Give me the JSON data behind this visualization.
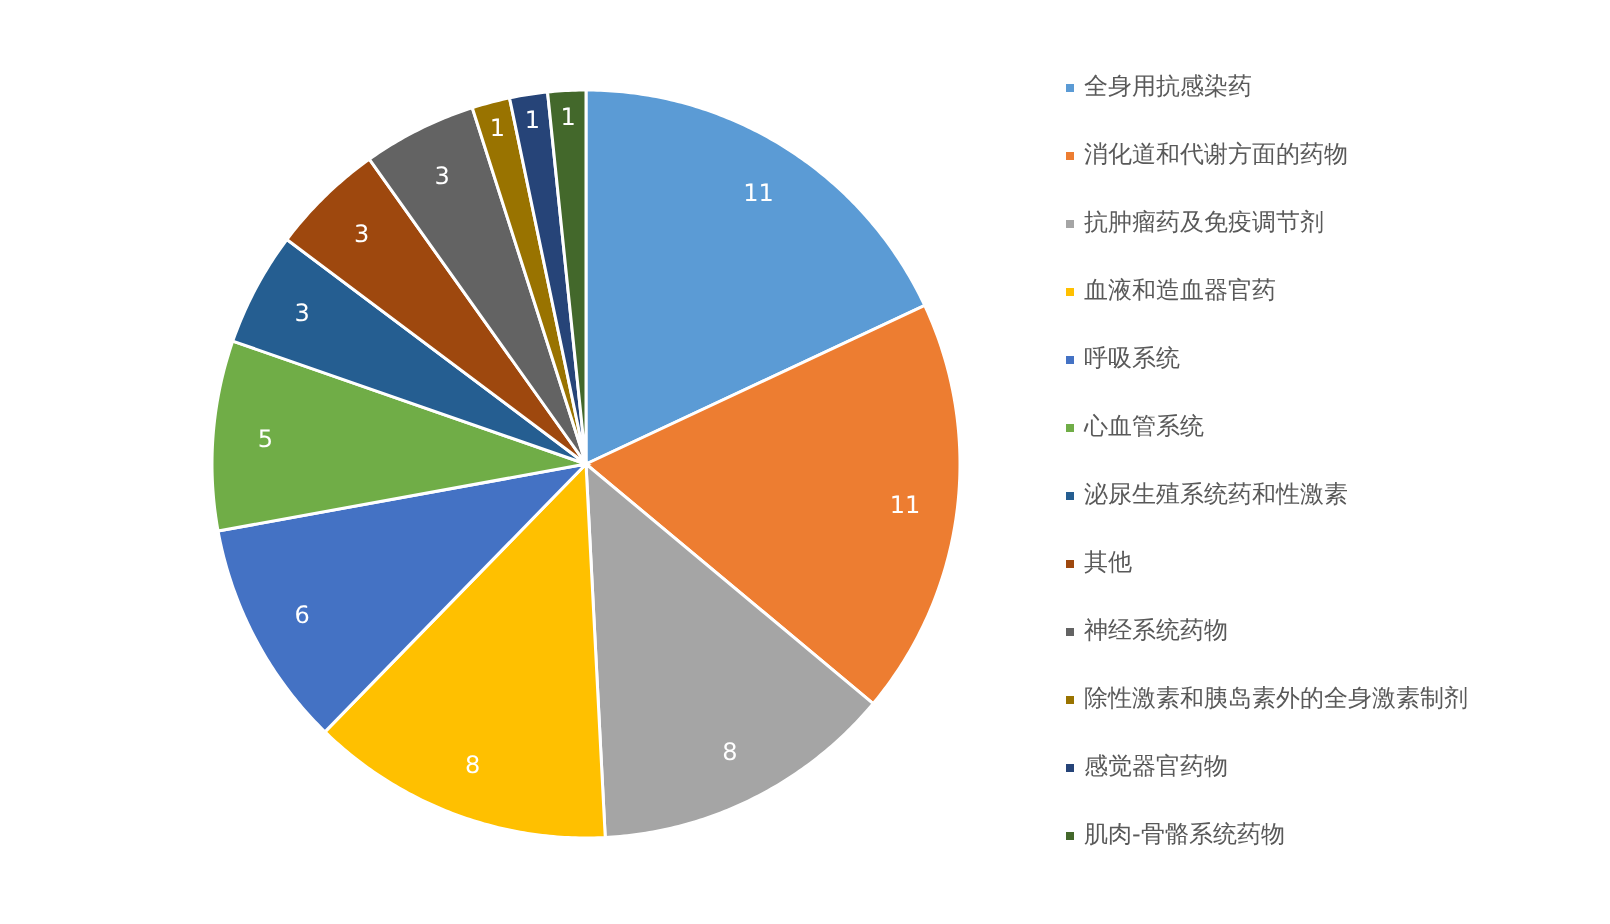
{
  "chart_data": {
    "type": "pie",
    "categories": [
      "全身用抗感染药",
      "消化道和代谢方面的药物",
      "抗肿瘤药及免疫调节剂",
      "血液和造血器官药",
      "呼吸系统",
      "心血管系统",
      "泌尿生殖系统药和性激素",
      "其他",
      "神经系统药物",
      "除性激素和胰岛素外的全身激素制剂",
      "感觉器官药物",
      "肌肉-骨骼系统药物"
    ],
    "values": [
      11,
      11,
      8,
      8,
      6,
      5,
      3,
      3,
      3,
      1,
      1,
      1
    ],
    "colors": [
      "#5b9bd5",
      "#ed7d31",
      "#a5a5a5",
      "#ffc000",
      "#4472c4",
      "#70ad47",
      "#255e91",
      "#9e480e",
      "#636363",
      "#997300",
      "#264478",
      "#43682b"
    ],
    "data_labels": true,
    "legend": "right"
  }
}
